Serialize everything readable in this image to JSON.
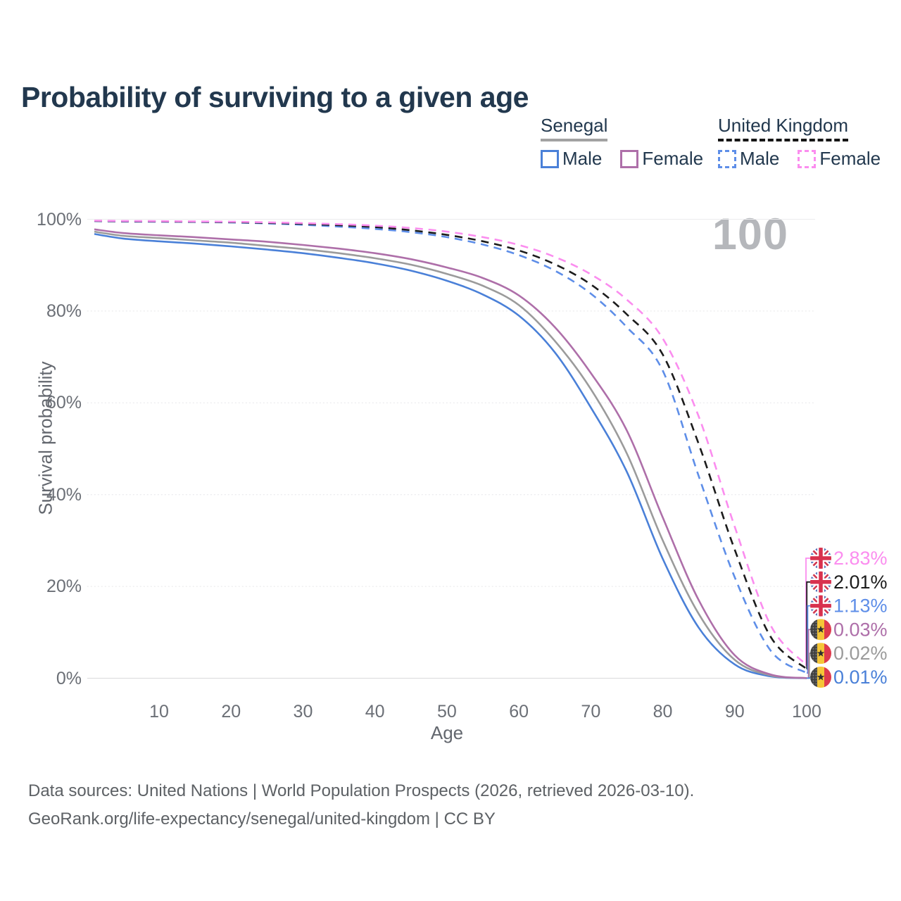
{
  "title": "Probability of surviving to a given age",
  "watermark": "100",
  "legend": {
    "groups": [
      {
        "id": "senegal",
        "label": "Senegal",
        "underline": "solid",
        "items": [
          {
            "label": "Male",
            "color": "#4a80d8",
            "dashed": false
          },
          {
            "label": "Female",
            "color": "#ae6fa9",
            "dashed": false
          }
        ]
      },
      {
        "id": "uk",
        "label": "United Kingdom",
        "underline": "dashed",
        "items": [
          {
            "label": "Male",
            "color": "#5e8ee8",
            "dashed": true
          },
          {
            "label": "Female",
            "color": "#fb8def",
            "dashed": true
          }
        ]
      }
    ]
  },
  "chart_data": {
    "type": "line",
    "title": "Probability of surviving to a given age",
    "xlabel": "Age",
    "ylabel": "Survival probability",
    "xlim": [
      0,
      100
    ],
    "ylim": [
      0,
      100
    ],
    "x_ticks": [
      10,
      20,
      30,
      40,
      50,
      60,
      70,
      80,
      90,
      100
    ],
    "y_ticks": [
      0,
      20,
      40,
      60,
      80,
      100
    ],
    "y_tick_labels": [
      "0%",
      "20%",
      "40%",
      "60%",
      "80%",
      "100%"
    ],
    "grid": true,
    "ages": [
      1,
      5,
      10,
      15,
      20,
      25,
      30,
      35,
      40,
      45,
      50,
      55,
      60,
      65,
      70,
      75,
      80,
      85,
      90,
      95,
      100
    ],
    "series": [
      {
        "id": "senegal-male",
        "name": "Senegal Male",
        "country": "Senegal",
        "sex": "Male",
        "color": "#4a80d8",
        "dash": false,
        "flag": "senegal",
        "end_label": "0.01%",
        "values": [
          96.8,
          95.8,
          95.2,
          94.7,
          94.1,
          93.4,
          92.6,
          91.6,
          90.4,
          88.8,
          86.6,
          83.6,
          79.0,
          71.0,
          59.0,
          45.0,
          26.0,
          11.0,
          3.0,
          0.4,
          0.01
        ]
      },
      {
        "id": "senegal-all",
        "name": "Senegal Both sexes",
        "country": "Senegal",
        "sex": "Both sexes",
        "color": "#9b9b9b",
        "dash": false,
        "flag": "senegal",
        "end_label": "0.02%",
        "values": [
          97.3,
          96.4,
          95.9,
          95.4,
          94.9,
          94.2,
          93.5,
          92.6,
          91.5,
          90.1,
          88.1,
          85.5,
          81.3,
          73.5,
          63.0,
          49.0,
          30.0,
          14.0,
          4.0,
          0.6,
          0.02
        ]
      },
      {
        "id": "senegal-female",
        "name": "Senegal Female",
        "country": "Senegal",
        "sex": "Female",
        "color": "#ae6fa9",
        "dash": false,
        "flag": "senegal",
        "end_label": "0.03%",
        "values": [
          97.8,
          97.0,
          96.5,
          96.1,
          95.6,
          95.1,
          94.4,
          93.6,
          92.6,
          91.3,
          89.5,
          87.2,
          83.4,
          76.5,
          66.5,
          54.0,
          35.0,
          17.0,
          5.0,
          0.8,
          0.03
        ]
      },
      {
        "id": "uk-male",
        "name": "United Kingdom Male",
        "country": "United Kingdom",
        "sex": "Male",
        "color": "#5e8ee8",
        "dash": true,
        "flag": "uk",
        "end_label": "1.13%",
        "values": [
          99.6,
          99.5,
          99.45,
          99.4,
          99.3,
          99.1,
          98.8,
          98.4,
          97.9,
          97.2,
          96.1,
          94.5,
          92.2,
          88.8,
          83.8,
          76.5,
          67.0,
          44.0,
          22.0,
          6.0,
          1.13
        ]
      },
      {
        "id": "uk-all",
        "name": "United Kingdom Both sexes",
        "country": "United Kingdom",
        "sex": "Both sexes",
        "color": "#1c1c1c",
        "dash": true,
        "flag": "uk",
        "end_label": "2.01%",
        "values": [
          99.65,
          99.57,
          99.52,
          99.46,
          99.38,
          99.22,
          99.0,
          98.7,
          98.3,
          97.6,
          96.6,
          95.2,
          93.2,
          90.2,
          85.8,
          79.3,
          70.5,
          51.0,
          28.0,
          9.0,
          2.01
        ]
      },
      {
        "id": "uk-female",
        "name": "United Kingdom Female",
        "country": "United Kingdom",
        "sex": "Female",
        "color": "#fb8def",
        "dash": true,
        "flag": "uk",
        "end_label": "2.83%",
        "values": [
          99.7,
          99.63,
          99.58,
          99.53,
          99.46,
          99.33,
          99.15,
          98.92,
          98.6,
          98.1,
          97.3,
          96.1,
          94.4,
          91.8,
          88.0,
          82.5,
          74.0,
          57.0,
          33.0,
          11.5,
          2.83
        ]
      }
    ]
  },
  "footer": {
    "line1": "Data sources: United Nations | World Population Prospects (2026, retrieved 2026-03-10).",
    "line2": "GeoRank.org/life-expectancy/senegal/united-kingdom | CC BY"
  }
}
